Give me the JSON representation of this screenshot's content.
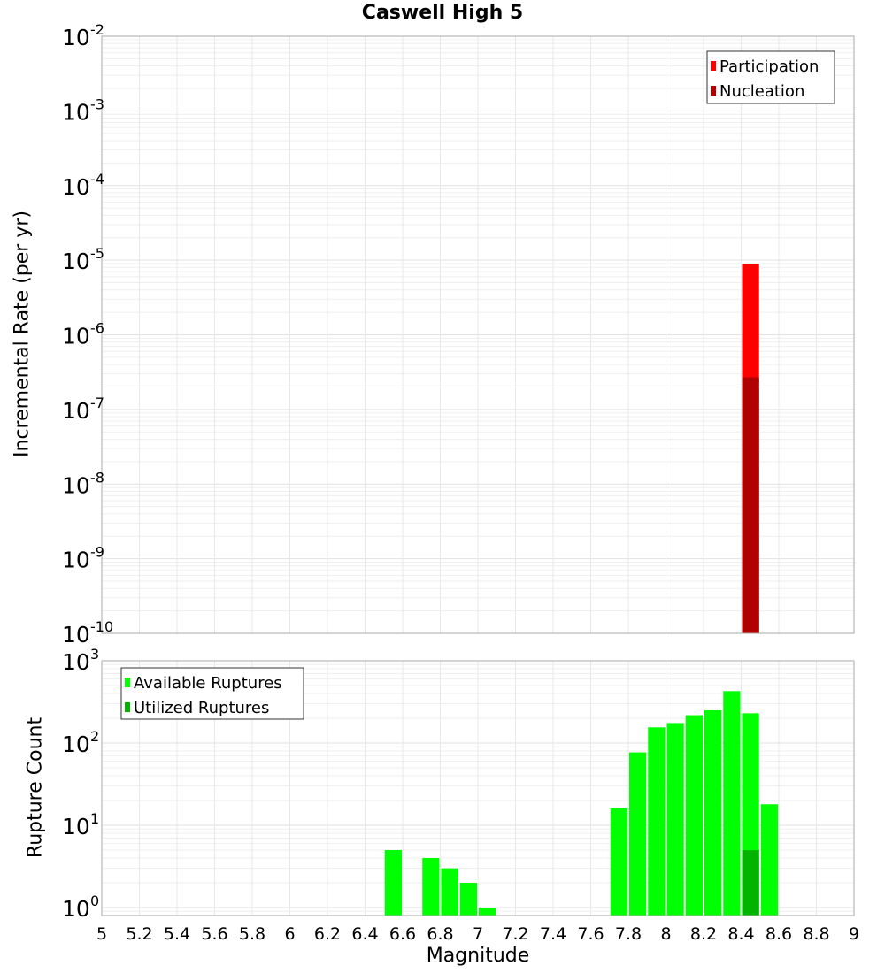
{
  "chart_data": [
    {
      "type": "bar",
      "title": "Caswell High 5",
      "xlabel": "Magnitude",
      "ylabel": "Incremental Rate (per yr)",
      "yscale": "log",
      "ylim": [
        1e-10,
        0.01
      ],
      "xlim": [
        5,
        9
      ],
      "grid": true,
      "legend_position": "upper-right",
      "y_tick_labels": [
        "10^-2",
        "10^-3",
        "10^-4",
        "10^-5",
        "10^-6",
        "10^-7",
        "10^-8",
        "10^-9",
        "10^-10"
      ],
      "series": [
        {
          "name": "Participation",
          "color": "#ff0000",
          "bin_width": 0.1,
          "x": [
            8.45
          ],
          "values": [
            8.9e-06
          ]
        },
        {
          "name": "Nucleation",
          "color": "#b00000",
          "bin_width": 0.1,
          "x": [
            8.45
          ],
          "values": [
            2.7e-07
          ]
        }
      ]
    },
    {
      "type": "bar",
      "title": "",
      "xlabel": "Magnitude",
      "ylabel": "Rupture Count",
      "yscale": "log",
      "ylim": [
        0.8,
        1000
      ],
      "xlim": [
        5,
        9
      ],
      "grid": true,
      "legend_position": "upper-left",
      "y_tick_labels": [
        "10^3",
        "10^2",
        "10^1",
        "10^0"
      ],
      "x_ticks": [
        5,
        5.2,
        5.4,
        5.6,
        5.8,
        6,
        6.2,
        6.4,
        6.6,
        6.8,
        7,
        7.2,
        7.4,
        7.6,
        7.8,
        8,
        8.2,
        8.4,
        8.6,
        8.8,
        9
      ],
      "series": [
        {
          "name": "Available Ruptures",
          "color": "#00ff00",
          "bin_width": 0.1,
          "x": [
            6.55,
            6.75,
            6.85,
            6.95,
            7.05,
            7.75,
            7.85,
            7.95,
            8.05,
            8.15,
            8.25,
            8.35,
            8.45,
            8.55
          ],
          "values": [
            5,
            4,
            3,
            2,
            1,
            16,
            77,
            155,
            175,
            218,
            250,
            428,
            230,
            18
          ]
        },
        {
          "name": "Utilized Ruptures",
          "color": "#00b400",
          "bin_width": 0.1,
          "x": [
            8.45
          ],
          "values": [
            5
          ]
        }
      ]
    }
  ],
  "labels": {
    "title": "Caswell High 5",
    "top_ylabel": "Incremental Rate (per yr)",
    "bottom_ylabel": "Rupture Count",
    "xlabel": "Magnitude"
  }
}
